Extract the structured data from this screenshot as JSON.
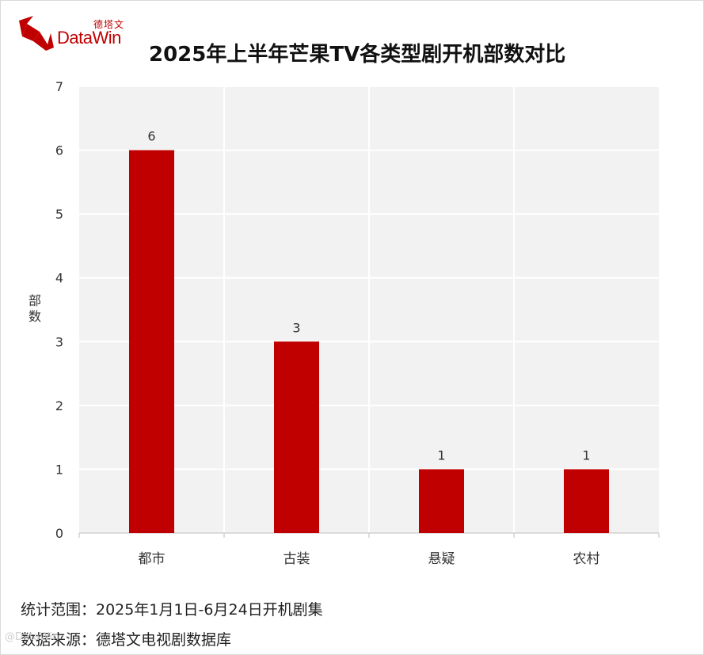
{
  "logo": {
    "brand_cn": "德塔文",
    "brand_en": "DataWin"
  },
  "header": {
    "title": "2025年上半年芒果TV各类型剧开机部数对比"
  },
  "chart_data": {
    "type": "bar",
    "title": "2025年上半年芒果TV各类型剧开机部数对比",
    "categories": [
      "都市",
      "古装",
      "悬疑",
      "农村"
    ],
    "values": [
      6,
      3,
      1,
      1
    ],
    "data_labels": [
      "6",
      "3",
      "1",
      "1"
    ],
    "xlabel": "",
    "ylabel": "部数",
    "ylim": [
      0,
      7
    ],
    "yticks": [
      0,
      1,
      2,
      3,
      4,
      5,
      6,
      7
    ],
    "grid": true,
    "legend": "none",
    "bar_color": "#c00000",
    "plot_background": "#f2f2f2",
    "grid_color": "#ffffff"
  },
  "footer": {
    "scope": "统计范围：2025年1月1日-6月24日开机剧集",
    "source": "数据来源：德塔文电视剧数据库"
  },
  "watermark": "@DataWin"
}
